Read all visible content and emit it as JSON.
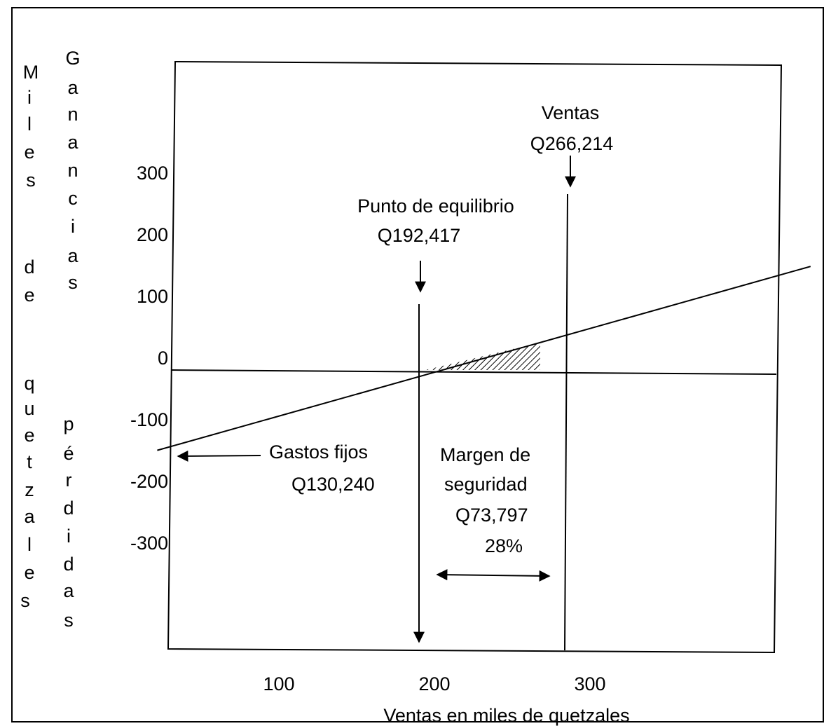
{
  "chart_data": {
    "type": "line",
    "title": "",
    "xlabel": "Ventas en miles de quetzales",
    "ylabel_outer": "Miles de quetzales",
    "ylabel_outer_chars": [
      "M",
      "i",
      "l",
      "e",
      "s",
      "d",
      "e",
      "q",
      "u",
      "e",
      "t",
      "z",
      "a",
      "l",
      "e",
      "s"
    ],
    "ylabel_gain_chars": [
      "G",
      "a",
      "n",
      "a",
      "n",
      "c",
      "i",
      "a",
      "s"
    ],
    "ylabel_loss_chars": [
      "p",
      "é",
      "r",
      "d",
      "i",
      "d",
      "a",
      "s"
    ],
    "x_ticks": [
      "100",
      "200",
      "300"
    ],
    "y_ticks": [
      "300",
      "200",
      "100",
      "0",
      "-100",
      "-200",
      "-300"
    ],
    "series": [
      {
        "points": [
          {
            "x": 20,
            "y": -130.24
          },
          {
            "x": 192.417,
            "y": 0
          },
          {
            "x": 266.214,
            "y": 50
          },
          {
            "x": 440,
            "y": 168
          }
        ]
      }
    ],
    "break_even": 192.417,
    "sales": 266.214,
    "hatch_color": "#000000"
  },
  "annotations": {
    "break_even": {
      "line1": "Punto de equilibrio",
      "line2": "Q192,417"
    },
    "sales": {
      "line1": "Ventas",
      "line2": "Q266,214"
    },
    "fixed_costs": {
      "line1": "Gastos fijos",
      "line2": "Q130,240"
    },
    "safety_margin": {
      "line1": "Margen de",
      "line2": "seguridad",
      "line3": "Q73,797",
      "line4": "28%"
    }
  }
}
